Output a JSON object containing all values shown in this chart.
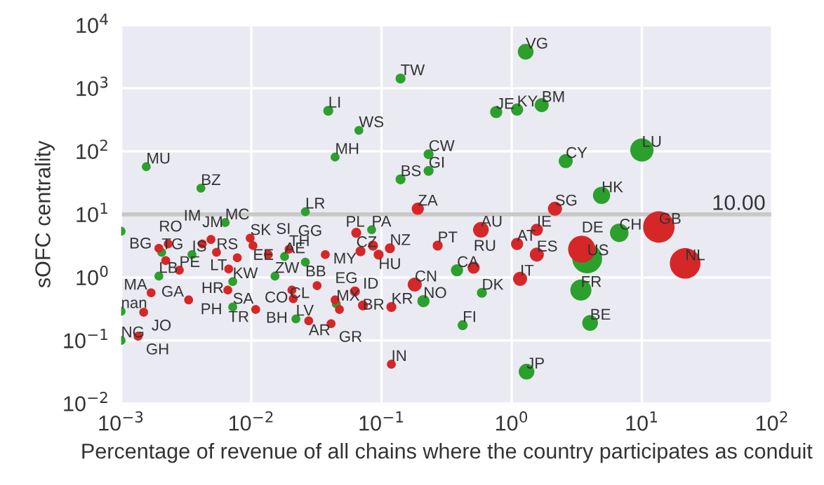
{
  "chart_data": {
    "type": "bubble",
    "xlabel": "Percentage of revenue of all chains where the country participates as conduit",
    "ylabel": "sOFC centrality",
    "log": "xy",
    "grid": true,
    "legend": false,
    "xlim": [
      0.001,
      100
    ],
    "ylim": [
      0.01,
      10000
    ],
    "xticks": [
      {
        "value": 0.001,
        "label": "10$^{−3}$"
      },
      {
        "value": 0.01,
        "label": "10$^{−2}$"
      },
      {
        "value": 0.1,
        "label": "10$^{−1}$"
      },
      {
        "value": 1,
        "label": "10$^{0}$"
      },
      {
        "value": 10,
        "label": "10$^{1}$"
      },
      {
        "value": 100,
        "label": "10$^{2}$"
      }
    ],
    "yticks": [
      {
        "value": 0.01,
        "label": "10$^{−2}$"
      },
      {
        "value": 0.1,
        "label": "10$^{−1}$"
      },
      {
        "value": 1,
        "label": "10$^{0}$"
      },
      {
        "value": 10,
        "label": "10$^{1}$"
      },
      {
        "value": 100,
        "label": "10$^{2}$"
      },
      {
        "value": 1000,
        "label": "10$^{3}$"
      },
      {
        "value": 10000,
        "label": "10$^{4}$"
      }
    ],
    "ref_lines": [
      {
        "axis": "y",
        "value": 10,
        "label": "10.00",
        "color": "#c8c8c8"
      }
    ],
    "series": [
      {
        "color": "#2ca02c",
        "x": [
          0.00156,
          0.0041,
          0.039,
          0.067,
          0.044,
          0.026,
          0.0063,
          0.14,
          1.28,
          0.76,
          1.1,
          1.7,
          0.23,
          0.23,
          0.14,
          2.6,
          10,
          4.9,
          6.7,
          3.8,
          0.38,
          3.4,
          0.59,
          0.21,
          0.42,
          4.0,
          1.3,
          0.00195,
          0.00205,
          0.0035,
          0.0072,
          0.0072,
          0.0152,
          0.018,
          0.026,
          0.022,
          0.084,
          0.045,
          0.001,
          0.001,
          0.001
        ],
        "values": [
          57,
          26,
          440,
          215,
          81,
          11,
          7.4,
          1430,
          3800,
          420,
          460,
          540,
          90,
          49,
          36,
          70,
          105,
          20,
          5.1,
          2.0,
          1.3,
          0.63,
          0.57,
          0.42,
          0.175,
          0.19,
          0.032,
          1.05,
          2.5,
          2.3,
          0.86,
          0.34,
          1.05,
          2.15,
          1.75,
          0.22,
          5.7,
          0.38,
          5.4,
          0.29,
          0.1
        ],
        "sizes": [
          0.08,
          0.08,
          0.1,
          0.08,
          0.08,
          0.08,
          0.08,
          0.1,
          0.25,
          0.15,
          0.15,
          0.2,
          0.1,
          0.1,
          0.1,
          0.2,
          0.55,
          0.3,
          0.35,
          0.9,
          0.15,
          0.45,
          0.1,
          0.15,
          0.1,
          0.25,
          0.25,
          0.08,
          0.08,
          0.08,
          0.08,
          0.08,
          0.08,
          0.08,
          0.08,
          0.08,
          0.08,
          0.08,
          0.08,
          0.08,
          0.08
        ]
      },
      {
        "color": "#d62728",
        "x": [
          13.5,
          21.5,
          3.45,
          0.58,
          1.56,
          1.1,
          1.56,
          0.27,
          0.51,
          1.16,
          0.18,
          0.119,
          0.119,
          0.116,
          0.095,
          0.19,
          2.15,
          0.064,
          0.069,
          0.086,
          0.0625,
          0.072,
          0.037,
          0.032,
          0.0205,
          0.021,
          0.044,
          0.0475,
          0.0276,
          0.041,
          0.0098,
          0.0103,
          0.0135,
          0.0195,
          0.0054,
          0.0049,
          0.0042,
          0.0078,
          0.0067,
          0.0066,
          0.0108,
          0.0033,
          0.0017,
          0.00149,
          0.00135,
          0.0028,
          0.00195,
          0.0023,
          0.0022
        ],
        "values": [
          6.3,
          1.67,
          2.8,
          5.7,
          5.7,
          3.4,
          2.3,
          3.2,
          1.43,
          0.95,
          0.77,
          0.34,
          0.042,
          2.9,
          2.3,
          12.3,
          12.3,
          5.1,
          2.6,
          3.2,
          0.6,
          0.36,
          2.3,
          0.74,
          0.63,
          0.46,
          0.44,
          0.31,
          0.205,
          0.185,
          4.2,
          3.2,
          2.3,
          2.8,
          2.5,
          4.0,
          3.4,
          2.05,
          1.36,
          0.63,
          0.31,
          0.44,
          0.57,
          0.28,
          0.117,
          1.3,
          2.9,
          3.4,
          1.85
        ],
        "sizes": [
          1.0,
          0.95,
          0.75,
          0.25,
          0.15,
          0.15,
          0.2,
          0.1,
          0.15,
          0.2,
          0.2,
          0.1,
          0.08,
          0.1,
          0.1,
          0.15,
          0.2,
          0.1,
          0.1,
          0.1,
          0.1,
          0.1,
          0.08,
          0.08,
          0.08,
          0.08,
          0.08,
          0.08,
          0.08,
          0.08,
          0.08,
          0.08,
          0.08,
          0.08,
          0.08,
          0.08,
          0.08,
          0.08,
          0.08,
          0.08,
          0.08,
          0.08,
          0.08,
          0.08,
          0.08,
          0.08,
          0.08,
          0.08,
          0.08
        ]
      }
    ],
    "annotations": [
      {
        "text": "MU",
        "x": 0.00156,
        "y": 57
      },
      {
        "text": "BZ",
        "x": 0.0041,
        "y": 26
      },
      {
        "text": "LI",
        "x": 0.039,
        "y": 440
      },
      {
        "text": "WS",
        "x": 0.067,
        "y": 215
      },
      {
        "text": "MH",
        "x": 0.044,
        "y": 81
      },
      {
        "text": "LR",
        "x": 0.026,
        "y": 11
      },
      {
        "text": "MC",
        "x": 0.0063,
        "y": 7.4
      },
      {
        "text": "TW",
        "x": 0.14,
        "y": 1430
      },
      {
        "text": "VG",
        "x": 1.28,
        "y": 3800
      },
      {
        "text": "JE",
        "x": 0.76,
        "y": 420
      },
      {
        "text": "KY",
        "x": 1.1,
        "y": 460
      },
      {
        "text": "BM",
        "x": 1.7,
        "y": 540
      },
      {
        "text": "CW",
        "x": 0.23,
        "y": 90
      },
      {
        "text": "GI",
        "x": 0.23,
        "y": 49
      },
      {
        "text": "BS",
        "x": 0.14,
        "y": 36
      },
      {
        "text": "CY",
        "x": 2.6,
        "y": 70
      },
      {
        "text": "LU",
        "x": 10,
        "y": 105
      },
      {
        "text": "HK",
        "x": 4.9,
        "y": 20
      },
      {
        "text": "CH",
        "x": 6.7,
        "y": 5.1
      },
      {
        "text": "US",
        "x": 3.8,
        "y": 2.0
      },
      {
        "text": "CA",
        "x": 0.38,
        "y": 1.3
      },
      {
        "text": "FR",
        "x": 3.4,
        "y": 0.63
      },
      {
        "text": "DK",
        "x": 0.59,
        "y": 0.57
      },
      {
        "text": "NO",
        "x": 0.21,
        "y": 0.42
      },
      {
        "text": "FI",
        "x": 0.42,
        "y": 0.175
      },
      {
        "text": "BE",
        "x": 4.0,
        "y": 0.19
      },
      {
        "text": "JP",
        "x": 1.3,
        "y": 0.032
      },
      {
        "text": "LB",
        "x": 0.00195,
        "y": 1.05
      },
      {
        "text": "TG",
        "x": 0.00205,
        "y": 2.5
      },
      {
        "text": "IS",
        "x": 0.0035,
        "y": 2.3
      },
      {
        "text": "KW",
        "x": 0.0072,
        "y": 0.86
      },
      {
        "text": "SA",
        "x": 0.0072,
        "y": 0.34
      },
      {
        "text": "ZW",
        "x": 0.0152,
        "y": 1.05
      },
      {
        "text": "AE",
        "x": 0.018,
        "y": 2.15
      },
      {
        "text": "BB",
        "x": 0.026,
        "y": 1.75
      },
      {
        "text": "LV",
        "x": 0.022,
        "y": 0.22
      },
      {
        "text": "PA",
        "x": 0.084,
        "y": 5.7
      },
      {
        "text": "MX",
        "x": 0.045,
        "y": 0.38
      },
      {
        "text": "nan",
        "x": 0.001,
        "y": 0.29
      },
      {
        "text": "NG",
        "x": 0.001,
        "y": 0.1
      },
      {
        "text": "GB",
        "x": 13.5,
        "y": 6.3
      },
      {
        "text": "NL",
        "x": 21.5,
        "y": 1.67
      },
      {
        "text": "DE",
        "x": 3.45,
        "y": 2.8
      },
      {
        "text": "AU",
        "x": 0.58,
        "y": 5.7
      },
      {
        "text": "IE",
        "x": 1.56,
        "y": 5.7
      },
      {
        "text": "AT",
        "x": 1.1,
        "y": 3.4
      },
      {
        "text": "ES",
        "x": 1.56,
        "y": 2.3
      },
      {
        "text": "PT",
        "x": 0.27,
        "y": 3.2
      },
      {
        "text": "RU",
        "x": 0.51,
        "y": 1.43
      },
      {
        "text": "IT",
        "x": 1.16,
        "y": 0.95
      },
      {
        "text": "CN",
        "x": 0.18,
        "y": 0.77
      },
      {
        "text": "KR",
        "x": 0.119,
        "y": 0.34
      },
      {
        "text": "IN",
        "x": 0.119,
        "y": 0.042
      },
      {
        "text": "NZ",
        "x": 0.116,
        "y": 2.9
      },
      {
        "text": "HU",
        "x": 0.095,
        "y": 2.3
      },
      {
        "text": "ZA",
        "x": 0.19,
        "y": 12.3
      },
      {
        "text": "SG",
        "x": 2.15,
        "y": 12.3
      },
      {
        "text": "CZ",
        "x": 0.064,
        "y": 5.1
      },
      {
        "text": "MY",
        "x": 0.069,
        "y": 2.6
      },
      {
        "text": "PL",
        "x": 0.086,
        "y": 3.2
      },
      {
        "text": "BR",
        "x": 0.0625,
        "y": 0.6
      },
      {
        "text": "ID",
        "x": 0.072,
        "y": 0.36
      },
      {
        "text": "GG",
        "x": 0.037,
        "y": 2.3
      },
      {
        "text": "CL",
        "x": 0.032,
        "y": 0.74
      },
      {
        "text": "CO",
        "x": 0.0205,
        "y": 0.63
      },
      {
        "text": "BH",
        "x": 0.021,
        "y": 0.46
      },
      {
        "text": "EG",
        "x": 0.044,
        "y": 0.44
      },
      {
        "text": "AR",
        "x": 0.0276,
        "y": 0.205
      },
      {
        "text": "GR",
        "x": 0.041,
        "y": 0.185
      },
      {
        "text": "SK",
        "x": 0.0098,
        "y": 4.2
      },
      {
        "text": "EE",
        "x": 0.0103,
        "y": 3.2
      },
      {
        "text": "SI",
        "x": 0.0135,
        "y": 2.3
      },
      {
        "text": "TH",
        "x": 0.0195,
        "y": 2.8
      },
      {
        "text": "RS",
        "x": 0.0054,
        "y": 2.5
      },
      {
        "text": "IM",
        "x": 0.0049,
        "y": 4.0
      },
      {
        "text": "JM",
        "x": 0.0042,
        "y": 3.4
      },
      {
        "text": "LT",
        "x": 0.0078,
        "y": 2.05
      },
      {
        "text": "HR",
        "x": 0.0067,
        "y": 1.36
      },
      {
        "text": "PH",
        "x": 0.0066,
        "y": 0.63
      },
      {
        "text": "TR",
        "x": 0.0108,
        "y": 0.31
      },
      {
        "text": "GA",
        "x": 0.0033,
        "y": 0.44
      },
      {
        "text": "MA",
        "x": 0.0017,
        "y": 0.57
      },
      {
        "text": "JO",
        "x": 0.00149,
        "y": 0.28
      },
      {
        "text": "GH",
        "x": 0.00135,
        "y": 0.117
      },
      {
        "text": "PE",
        "x": 0.0028,
        "y": 1.3
      },
      {
        "text": "RO",
        "x": 0.00195,
        "y": 2.9
      },
      {
        "text": "BG",
        "x": 0.0023,
        "y": 3.4
      }
    ]
  }
}
